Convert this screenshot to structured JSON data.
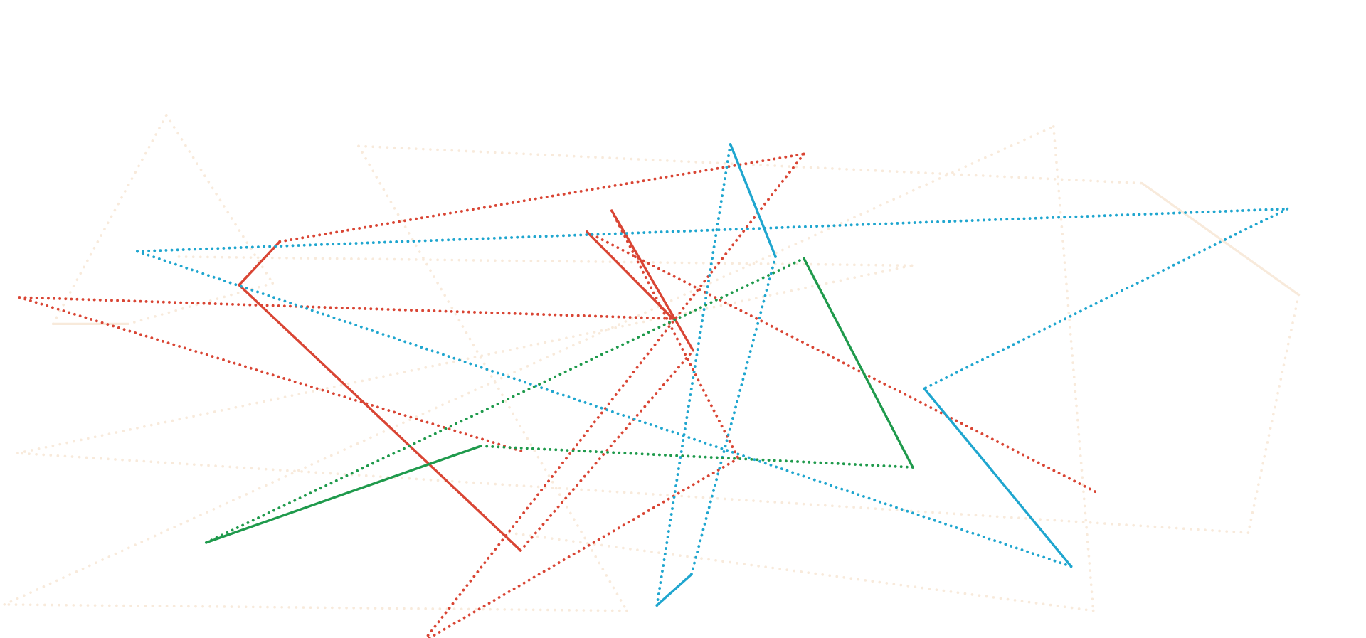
{
  "artwork": {
    "background": "#ffffff",
    "strokes": [
      {
        "name": "stroke-peach",
        "color": "#f6e3cf",
        "opacity": 0.75
      },
      {
        "name": "stroke-red",
        "color": "#d94534",
        "opacity": 1
      },
      {
        "name": "stroke-blue",
        "color": "#1fa6cf",
        "opacity": 1
      },
      {
        "name": "stroke-green",
        "color": "#1f9a4c",
        "opacity": 1
      }
    ]
  }
}
